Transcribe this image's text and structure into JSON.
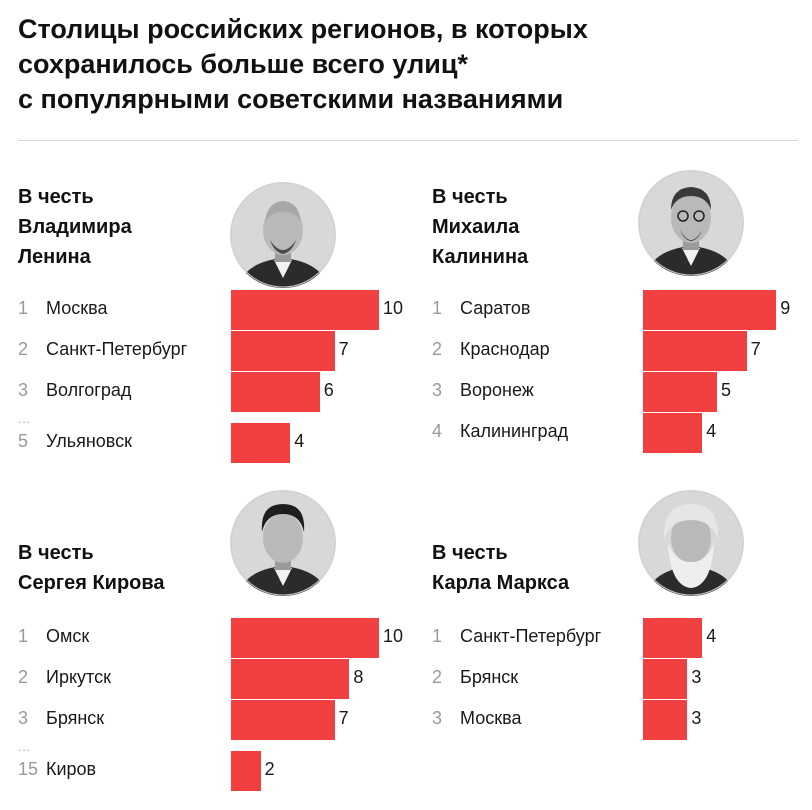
{
  "title": {
    "line1": "Столицы российских регионов, в которых",
    "line2": "сохранилось больше всего улиц*",
    "line3": "с популярными советскими названиями"
  },
  "colors": {
    "bar": "#f24040",
    "rank": "#9a9a9a"
  },
  "chart_data": [
    {
      "type": "bar",
      "orientation": "horizontal",
      "title_lines": [
        "В честь",
        "Владимира",
        "Ленина"
      ],
      "portrait": "lenin-portrait",
      "ranks": [
        "1",
        "2",
        "3",
        "5"
      ],
      "categories": [
        "Москва",
        "Санкт-Петербург",
        "Волгоград",
        "Ульяновск"
      ],
      "values": [
        10,
        7,
        6,
        4
      ],
      "gap_after_index": 2,
      "gap_marker": "..."
    },
    {
      "type": "bar",
      "orientation": "horizontal",
      "title_lines": [
        "В честь",
        "Михаила",
        "Калинина"
      ],
      "portrait": "kalinin-portrait",
      "ranks": [
        "1",
        "2",
        "3",
        "4"
      ],
      "categories": [
        "Саратов",
        "Краснодар",
        "Воронеж",
        "Калининград"
      ],
      "values": [
        9,
        7,
        5,
        4
      ],
      "gap_after_index": null,
      "gap_marker": ""
    },
    {
      "type": "bar",
      "orientation": "horizontal",
      "title_lines": [
        "В честь",
        "Сергея Кирова"
      ],
      "portrait": "kirov-portrait",
      "ranks": [
        "1",
        "2",
        "3",
        "15"
      ],
      "categories": [
        "Омск",
        "Иркутск",
        "Брянск",
        "Киров"
      ],
      "values": [
        10,
        8,
        7,
        2
      ],
      "gap_after_index": 2,
      "gap_marker": "..."
    },
    {
      "type": "bar",
      "orientation": "horizontal",
      "title_lines": [
        "В честь",
        "Карла Маркса"
      ],
      "portrait": "marx-portrait",
      "ranks": [
        "1",
        "2",
        "3"
      ],
      "categories": [
        "Санкт-Петербург",
        "Брянск",
        "Москва"
      ],
      "values": [
        4,
        3,
        3
      ],
      "gap_after_index": null,
      "gap_marker": ""
    }
  ]
}
